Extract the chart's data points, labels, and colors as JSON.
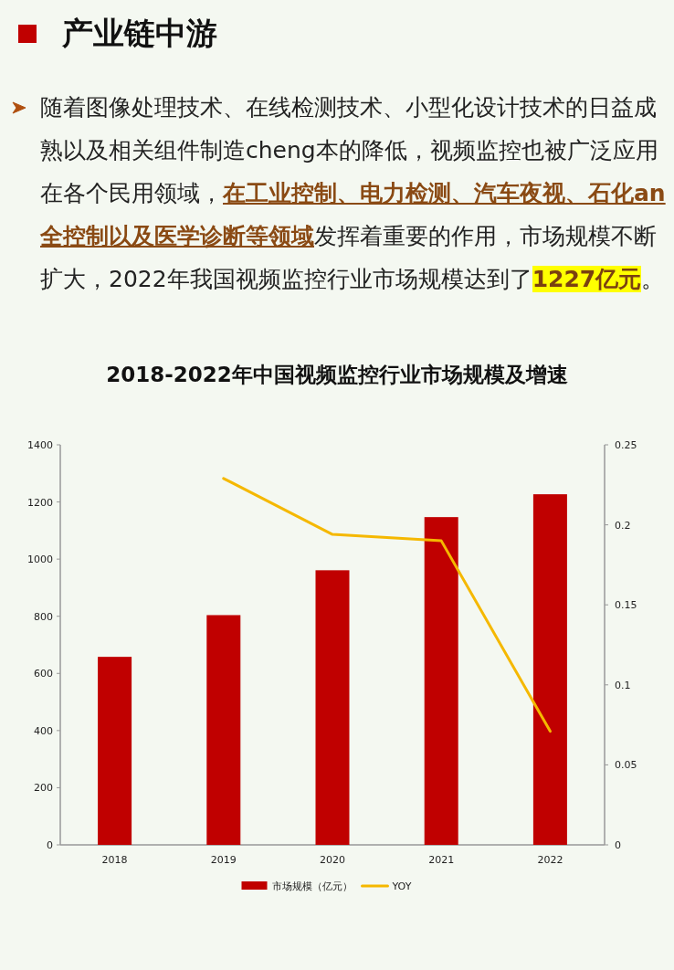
{
  "chart_data": {
    "type": "bar",
    "title": "2018-2022年中国视频监控行业市场规模及增速",
    "annotations": [
      "产业链中游",
      "随着图像处理技术、在线检测技术、小型化设计技术的日益成熟以及相关组件制造cheng本的降低，视频监控也被广泛应用在各个民用领域，**在工业控制、电力检测、汽车夜视、石化an全控制以及医学诊断等领域**发挥着重要的作用，市场规模不断扩大，2022年我国视频监控行业市场规模达到了**1227亿元**。"
    ],
    "categories": [
      "2018",
      "2019",
      "2020",
      "2021",
      "2022"
    ],
    "series": [
      {
        "name": "市场规模（亿元）",
        "color": "#c00000",
        "values": [
          658,
          804,
          961,
          1147,
          1227
        ]
      },
      {
        "name": "YOY",
        "type": "line",
        "axis": "y2",
        "color": "#f5b800",
        "values": [
          null,
          0.229,
          0.194,
          0.19,
          0.071
        ]
      }
    ],
    "ylim": [
      0,
      1400
    ],
    "yticks": [
      0,
      200,
      400,
      600,
      800,
      1000,
      1200,
      1400
    ],
    "y2lim": [
      0,
      0.25
    ],
    "y2ticks": [
      0,
      0.05,
      0.1,
      0.15,
      0.2,
      0.25
    ],
    "legend": "bottom",
    "marker": "none",
    "line_style": "solid",
    "grid": false
  }
}
